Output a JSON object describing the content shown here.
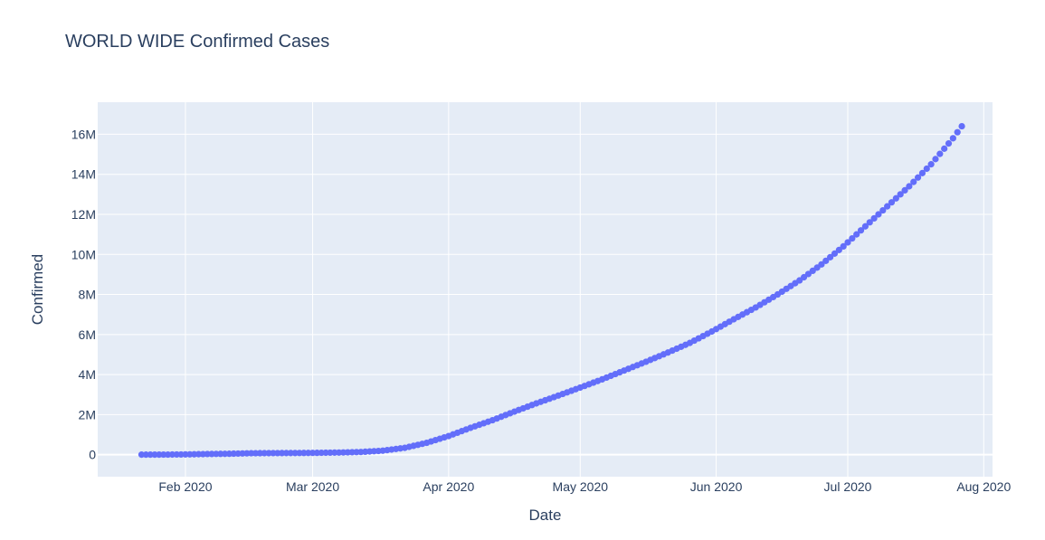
{
  "chart_data": {
    "type": "scatter",
    "title": "WORLD WIDE Confirmed Cases",
    "xlabel": "Date",
    "ylabel": "Confirmed",
    "x_ticks": [
      "Feb 2020",
      "Mar 2020",
      "Apr 2020",
      "May 2020",
      "Jun 2020",
      "Jul 2020",
      "Aug 2020"
    ],
    "y_ticks": [
      "0",
      "2M",
      "4M",
      "6M",
      "8M",
      "10M",
      "12M",
      "14M",
      "16M"
    ],
    "x_range": [
      "2020-01-12",
      "2020-08-03"
    ],
    "ylim": [
      -1100000,
      17600000
    ],
    "grid": true,
    "legend": "none",
    "colors": {
      "marker": "#636efa",
      "plot_bg": "#e5ecf6",
      "text": "#2a3f5f"
    },
    "series": [
      {
        "x": [
          "2020-01-22",
          "2020-01-27",
          "2020-02-01",
          "2020-02-06",
          "2020-02-11",
          "2020-02-16",
          "2020-02-21",
          "2020-02-26",
          "2020-03-02",
          "2020-03-07",
          "2020-03-12",
          "2020-03-17",
          "2020-03-22",
          "2020-03-27",
          "2020-04-01",
          "2020-04-06",
          "2020-04-11",
          "2020-04-16",
          "2020-04-21",
          "2020-04-26",
          "2020-05-01",
          "2020-05-06",
          "2020-05-11",
          "2020-05-16",
          "2020-05-21",
          "2020-05-26",
          "2020-05-31",
          "2020-06-05",
          "2020-06-10",
          "2020-06-15",
          "2020-06-20",
          "2020-06-25",
          "2020-06-30",
          "2020-07-05",
          "2020-07-10",
          "2020-07-15",
          "2020-07-20",
          "2020-07-25",
          "2020-07-27"
        ],
        "y": [
          555,
          2900,
          12000,
          31000,
          45000,
          71000,
          77000,
          81000,
          90000,
          106000,
          134000,
          198000,
          340000,
          590000,
          930000,
          1340000,
          1720000,
          2150000,
          2560000,
          2950000,
          3350000,
          3760000,
          4200000,
          4640000,
          5100000,
          5580000,
          6150000,
          6760000,
          7350000,
          8000000,
          8700000,
          9500000,
          10400000,
          11400000,
          12400000,
          13400000,
          14500000,
          15800000,
          16400000
        ]
      }
    ]
  }
}
